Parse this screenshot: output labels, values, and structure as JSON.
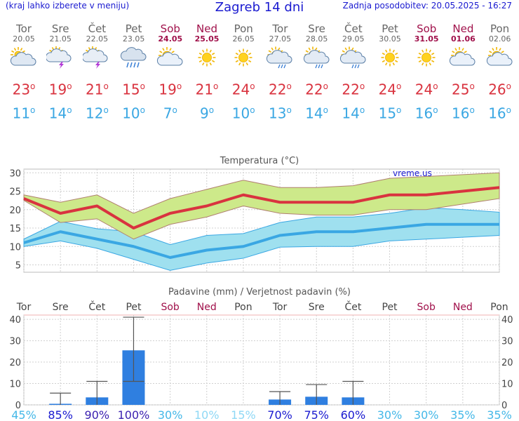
{
  "header": {
    "left": "(kraj lahko izberete v meniju)",
    "title": "Zagreb 14 dni",
    "right": "Zadnja posodobitev: 20.05.2025 - 16:27"
  },
  "days": [
    {
      "name": "Tor",
      "date": "20.05",
      "weekend": false,
      "icon": "partly-cloudy-icon",
      "tmax": "23",
      "tmin": "11"
    },
    {
      "name": "Sre",
      "date": "21.05",
      "weekend": false,
      "icon": "thunderstorm-sun-icon",
      "tmax": "19",
      "tmin": "14"
    },
    {
      "name": "Čet",
      "date": "22.05",
      "weekend": false,
      "icon": "thunderstorm-sun-icon",
      "tmax": "21",
      "tmin": "12"
    },
    {
      "name": "Pet",
      "date": "23.05",
      "weekend": false,
      "icon": "rain-cloud-icon",
      "tmax": "15",
      "tmin": "10"
    },
    {
      "name": "Sob",
      "date": "24.05",
      "weekend": true,
      "icon": "sun-cloud-icon",
      "tmax": "19",
      "tmin": "7"
    },
    {
      "name": "Ned",
      "date": "25.05",
      "weekend": true,
      "icon": "sun-icon",
      "tmax": "21",
      "tmin": "9"
    },
    {
      "name": "Pon",
      "date": "26.05",
      "weekend": false,
      "icon": "sun-icon",
      "tmax": "24",
      "tmin": "10"
    },
    {
      "name": "Tor",
      "date": "27.05",
      "weekend": false,
      "icon": "sun-rain-icon",
      "tmax": "22",
      "tmin": "13"
    },
    {
      "name": "Sre",
      "date": "28.05",
      "weekend": false,
      "icon": "sun-rain-icon",
      "tmax": "22",
      "tmin": "14"
    },
    {
      "name": "Čet",
      "date": "29.05",
      "weekend": false,
      "icon": "sun-rain-icon",
      "tmax": "22",
      "tmin": "14"
    },
    {
      "name": "Pet",
      "date": "30.05",
      "weekend": false,
      "icon": "sun-icon",
      "tmax": "24",
      "tmin": "15"
    },
    {
      "name": "Sob",
      "date": "31.05",
      "weekend": true,
      "icon": "sun-icon",
      "tmax": "24",
      "tmin": "16"
    },
    {
      "name": "Ned",
      "date": "01.06",
      "weekend": true,
      "icon": "sun-cloud-icon",
      "tmax": "25",
      "tmin": "16"
    },
    {
      "name": "Pon",
      "date": "02.06",
      "weekend": false,
      "icon": "sun-cloud-icon",
      "tmax": "26",
      "tmin": "16"
    }
  ],
  "degree_symbol": "o",
  "colors": {
    "max": "#d9333f",
    "min": "#3aa7e3",
    "weekend": "#a0104a",
    "precip": "#2f7fe0",
    "maxband": "#cde98a",
    "minband": "#9fe0ef"
  },
  "chart_data": [
    {
      "type": "line",
      "title": "Temperatura (°C)",
      "watermark": "vreme.us",
      "ylim": [
        3,
        31
      ],
      "yticks": [
        5,
        10,
        15,
        20,
        25,
        30
      ],
      "series": [
        {
          "role": "max",
          "values": [
            23,
            19,
            21,
            15,
            19,
            21,
            24,
            22,
            22,
            22,
            24,
            24,
            25,
            26
          ]
        },
        {
          "role": "max-band-upper",
          "values": [
            24,
            22,
            24,
            19,
            23,
            25.5,
            28,
            26,
            26,
            26.5,
            28.5,
            29,
            29.5,
            30
          ]
        },
        {
          "role": "max-band-lower",
          "values": [
            22.5,
            16.5,
            17.5,
            12,
            16,
            18,
            21,
            19,
            18.5,
            18.5,
            20,
            20,
            21.5,
            23
          ]
        },
        {
          "role": "min",
          "values": [
            11,
            14,
            12,
            10,
            7,
            9,
            10,
            13,
            14,
            14,
            15,
            16,
            16,
            16
          ]
        },
        {
          "role": "min-band-upper",
          "values": [
            12,
            16.8,
            14.8,
            14,
            10.5,
            13,
            13.5,
            16.5,
            18,
            18,
            19,
            20.5,
            20,
            19.3
          ]
        },
        {
          "role": "min-band-lower",
          "values": [
            10,
            11.5,
            9.5,
            6.5,
            3.5,
            5.5,
            6.8,
            9.8,
            10,
            10,
            11.5,
            12,
            12.5,
            13
          ]
        }
      ]
    },
    {
      "type": "bar",
      "title": "Padavine (mm) / Verjetnost padavin (%)",
      "ylim": [
        0,
        42
      ],
      "yticks": [
        0,
        10,
        20,
        30,
        40
      ],
      "categories": [
        "Tor",
        "Sre",
        "Čet",
        "Pet",
        "Sob",
        "Ned",
        "Pon",
        "Tor",
        "Sre",
        "Čet",
        "Pet",
        "Sob",
        "Ned",
        "Pon"
      ],
      "values": [
        0,
        0.5,
        3.5,
        25.5,
        0,
        0,
        0,
        2.5,
        3.8,
        3.5,
        0,
        0,
        0,
        0
      ],
      "err_high": [
        0,
        5.5,
        11,
        41,
        0,
        0,
        0,
        6.2,
        9.5,
        11,
        0,
        0,
        0,
        0
      ],
      "err_low": [
        0,
        0,
        0,
        11,
        0,
        0,
        0,
        0,
        0,
        0,
        0,
        0,
        0,
        0
      ],
      "probability": [
        "45%",
        "85%",
        "90%",
        "100%",
        "30%",
        "10%",
        "15%",
        "70%",
        "75%",
        "60%",
        "30%",
        "30%",
        "35%",
        "35%"
      ]
    }
  ]
}
